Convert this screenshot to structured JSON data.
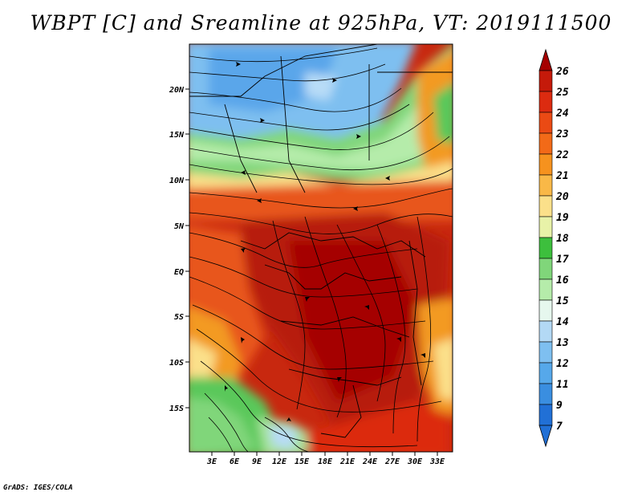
{
  "title": "WBPT [C] and Sreamline at 925hPa, VT: 2019111500",
  "footer": "GrADS: IGES/COLA",
  "map": {
    "lat_labels": [
      "20N",
      "15N",
      "10N",
      "5N",
      "EQ",
      "5S",
      "10S",
      "15S"
    ],
    "lon_labels": [
      "3E",
      "6E",
      "9E",
      "12E",
      "15E",
      "18E",
      "21E",
      "24E",
      "27E",
      "30E",
      "33E"
    ],
    "lon_range": [
      0,
      35
    ],
    "lat_range": [
      -20,
      25
    ]
  },
  "colorbar": {
    "levels": [
      "26",
      "25",
      "24",
      "23",
      "22",
      "21",
      "20",
      "19",
      "18",
      "17",
      "16",
      "15",
      "14",
      "13",
      "12",
      "11",
      "9",
      "7"
    ],
    "colors": [
      "#a50000",
      "#c51a0a",
      "#dc2b10",
      "#ea4a14",
      "#f26a18",
      "#f6921e",
      "#f9b847",
      "#fbe08a",
      "#e8f2a8",
      "#3dbf3d",
      "#80d67a",
      "#b5ecaa",
      "#e6f7ee",
      "#b3d9f5",
      "#7ebff0",
      "#56a8ea",
      "#3a8ee0",
      "#2170d6"
    ]
  },
  "colors": {
    "hot": "#c41f0d",
    "warm": "#e8561a",
    "orange": "#f39a24",
    "yellow": "#fbe08a",
    "green": "#5ac85a",
    "lightgreen": "#a8e39c",
    "blue": "#7ebff0",
    "lightblue": "#b8dcf7"
  }
}
